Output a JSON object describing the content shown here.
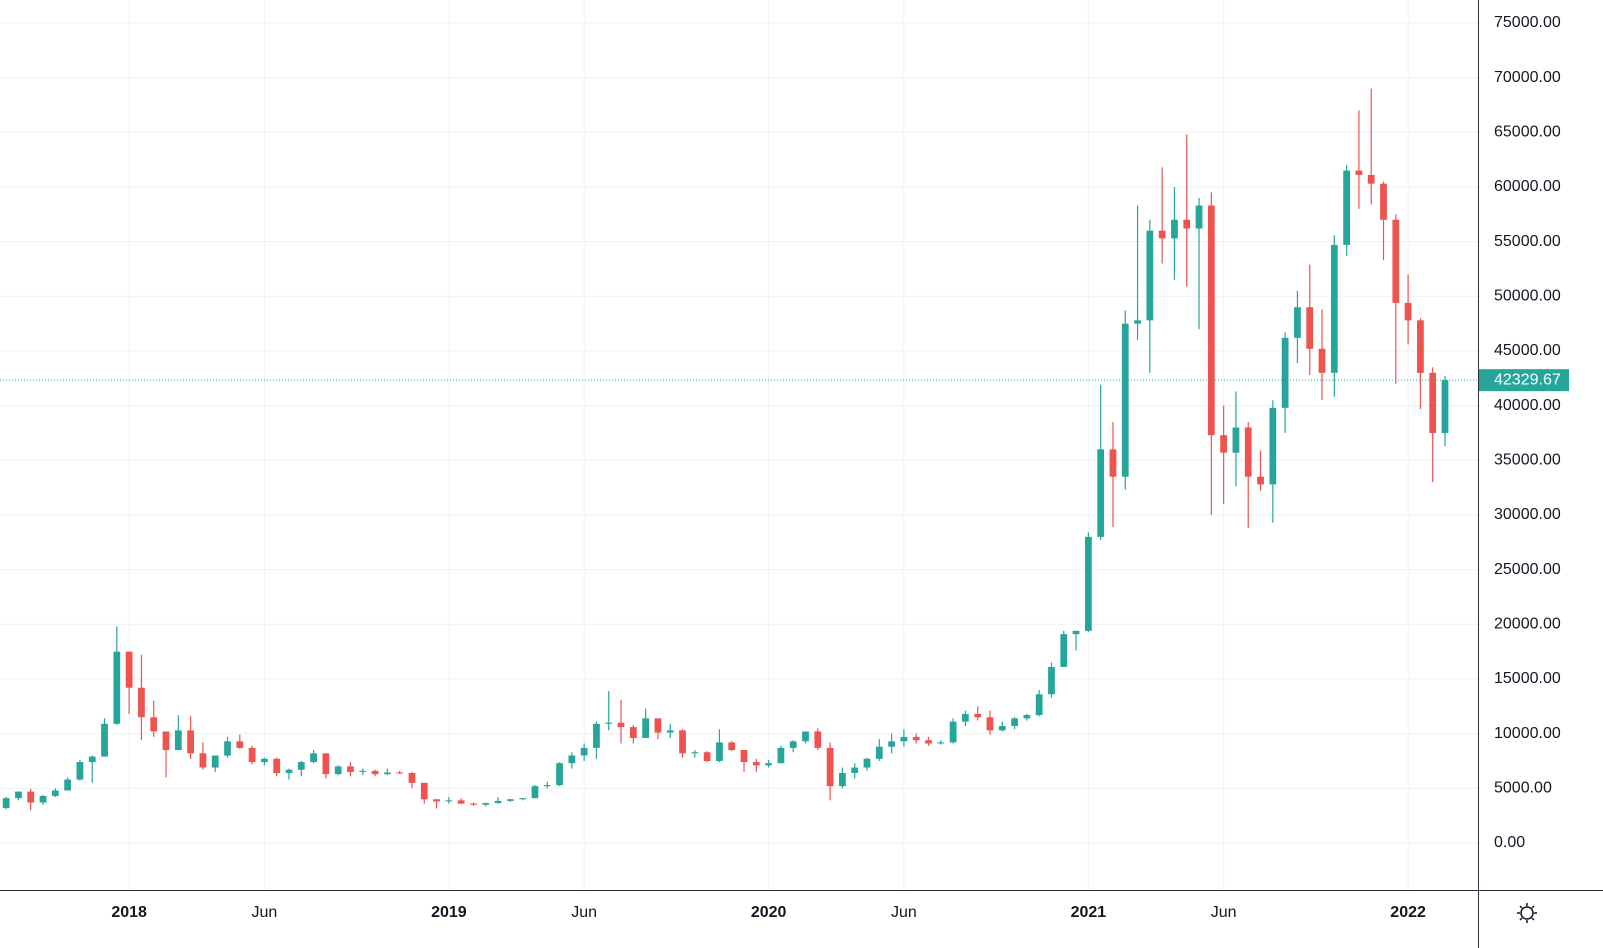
{
  "chart_data": {
    "type": "candlestick",
    "categories": [
      null,
      null,
      null,
      null,
      null,
      null,
      null,
      null,
      null,
      null,
      "2018",
      null,
      null,
      null,
      null,
      null,
      null,
      null,
      null,
      null,
      null,
      "Jun",
      null,
      null,
      null,
      null,
      null,
      null,
      null,
      null,
      null,
      null,
      null,
      null,
      null,
      null,
      "2019",
      null,
      null,
      null,
      null,
      null,
      null,
      null,
      null,
      null,
      null,
      "Jun",
      null,
      null,
      null,
      null,
      null,
      null,
      null,
      null,
      null,
      null,
      null,
      null,
      null,
      null,
      "2020",
      null,
      null,
      null,
      null,
      null,
      null,
      null,
      null,
      null,
      null,
      "Jun",
      null,
      null,
      null,
      null,
      null,
      null,
      null,
      null,
      null,
      null,
      null,
      null,
      null,
      null,
      "2021",
      null,
      null,
      null,
      null,
      null,
      null,
      null,
      null,
      null,
      null,
      "Jun",
      null,
      null,
      null,
      null,
      null,
      null,
      null,
      null,
      null,
      null,
      null,
      null,
      null,
      null,
      "2022",
      null,
      null,
      null
    ],
    "open": [
      3200,
      4100,
      4700,
      3700,
      4300,
      4800,
      5800,
      7400,
      7900,
      10900,
      17500,
      14200,
      11500,
      10200,
      8500,
      10300,
      8200,
      6900,
      8000,
      9300,
      8700,
      7400,
      7700,
      6400,
      6700,
      7400,
      8200,
      6300,
      7000,
      6500,
      6600,
      6300,
      6450,
      6400,
      5500,
      4000,
      3800,
      3900,
      3600,
      3500,
      3650,
      3850,
      4000,
      4100,
      5200,
      5300,
      7300,
      8000,
      8700,
      10900,
      11000,
      10600,
      9600,
      11400,
      10100,
      10300,
      8200,
      8300,
      7500,
      9200,
      8500,
      7400,
      7100,
      7300,
      8700,
      9300,
      10200,
      8700,
      5200,
      6400,
      6900,
      7700,
      8800,
      9300,
      9700,
      9400,
      9100,
      9200,
      11100,
      11800,
      11500,
      10300,
      10700,
      11400,
      11700,
      13600,
      16100,
      19100,
      19400,
      28000,
      36000,
      33500,
      47500,
      47800,
      56000,
      55300,
      57000,
      56200,
      58300,
      37300,
      35700,
      38000,
      33500,
      32800,
      39800,
      46200,
      49000,
      45200,
      43000,
      54700,
      61500,
      61100,
      60300,
      57000,
      49400,
      47800,
      43000,
      37500
    ],
    "high": [
      4200,
      4700,
      4950,
      4400,
      5000,
      6000,
      7600,
      8000,
      11400,
      19800,
      17500,
      17200,
      13000,
      10200,
      11700,
      11600,
      9200,
      8000,
      9700,
      9900,
      8900,
      7800,
      7800,
      6800,
      7500,
      8500,
      8200,
      7100,
      7400,
      6800,
      6700,
      6800,
      6600,
      6500,
      5500,
      4000,
      4200,
      4100,
      3700,
      3700,
      4200,
      4050,
      4100,
      5300,
      5600,
      7400,
      8300,
      9100,
      11100,
      13900,
      13100,
      10800,
      12300,
      11400,
      10900,
      10400,
      8500,
      8400,
      10400,
      9300,
      8500,
      7700,
      7600,
      8900,
      9400,
      10200,
      10500,
      9200,
      6900,
      7300,
      7800,
      9500,
      10000,
      10400,
      10000,
      9700,
      9400,
      11400,
      12100,
      12500,
      12100,
      11100,
      11500,
      11800,
      14000,
      16500,
      19400,
      19400,
      28400,
      41900,
      38500,
      48700,
      58300,
      57000,
      61800,
      60000,
      64800,
      59000,
      59500,
      40000,
      41300,
      38500,
      35900,
      40500,
      46700,
      50500,
      52900,
      48800,
      55600,
      62000,
      67000,
      69000,
      60500,
      57500,
      52000,
      48000,
      43500,
      42700
    ],
    "low": [
      3100,
      3900,
      3000,
      3500,
      4200,
      4800,
      5700,
      5500,
      7900,
      10800,
      11800,
      9400,
      9700,
      6000,
      8500,
      7700,
      6700,
      6500,
      7800,
      8600,
      7200,
      7100,
      6100,
      5800,
      6100,
      7300,
      5900,
      6200,
      6100,
      6200,
      6100,
      6200,
      6300,
      5000,
      3600,
      3150,
      3600,
      3550,
      3400,
      3350,
      3600,
      3750,
      3900,
      4100,
      5000,
      5200,
      6800,
      7500,
      7700,
      10300,
      9100,
      9100,
      9600,
      9500,
      9600,
      7800,
      7800,
      7400,
      7400,
      8400,
      6500,
      6500,
      6900,
      7300,
      8300,
      9100,
      8500,
      3900,
      5000,
      5900,
      6600,
      7500,
      8200,
      8800,
      9100,
      8900,
      9000,
      9100,
      10700,
      11200,
      9900,
      10200,
      10400,
      11200,
      11600,
      13300,
      16100,
      17600,
      19300,
      27700,
      28900,
      32300,
      46000,
      43000,
      53000,
      51500,
      50900,
      47000,
      30000,
      31000,
      32600,
      28800,
      32200,
      29300,
      37500,
      43900,
      42800,
      40500,
      40800,
      53700,
      58000,
      58400,
      53300,
      42000,
      45600,
      39700,
      33000,
      36300
    ],
    "close": [
      4100,
      4700,
      3700,
      4300,
      4800,
      5800,
      7400,
      7900,
      10900,
      17500,
      14200,
      11500,
      10200,
      8500,
      10300,
      8200,
      6900,
      8000,
      9300,
      8700,
      7400,
      7700,
      6400,
      6700,
      7400,
      8200,
      6300,
      7000,
      6500,
      6600,
      6300,
      6450,
      6400,
      5500,
      4000,
      3800,
      3900,
      3600,
      3500,
      3650,
      3850,
      4000,
      4100,
      5200,
      5300,
      7300,
      8000,
      8700,
      10900,
      11000,
      10600,
      9600,
      11400,
      10100,
      10300,
      8200,
      8300,
      7500,
      9200,
      8500,
      7400,
      7100,
      7300,
      8700,
      9300,
      10200,
      8700,
      5200,
      6400,
      6900,
      7700,
      8800,
      9300,
      9700,
      9400,
      9100,
      9200,
      11100,
      11800,
      11500,
      10300,
      10700,
      11400,
      11700,
      13600,
      16100,
      19100,
      19400,
      28000,
      36000,
      33500,
      47500,
      47800,
      56000,
      55300,
      57000,
      56200,
      58300,
      37300,
      35700,
      38000,
      33500,
      32800,
      39800,
      46200,
      49000,
      45200,
      43000,
      54700,
      61500,
      61100,
      60300,
      57000,
      49400,
      47800,
      43000,
      37500,
      42329.67
    ],
    "colors": {
      "up": "#26a69a",
      "down": "#ef5350"
    },
    "ylim": [
      -4300,
      77100
    ],
    "yticks": [
      {
        "value": 0,
        "label": "0.00"
      },
      {
        "value": 5000,
        "label": "5000.00"
      },
      {
        "value": 10000,
        "label": "10000.00"
      },
      {
        "value": 15000,
        "label": "15000.00"
      },
      {
        "value": 20000,
        "label": "20000.00"
      },
      {
        "value": 25000,
        "label": "25000.00"
      },
      {
        "value": 30000,
        "label": "30000.00"
      },
      {
        "value": 35000,
        "label": "35000.00"
      },
      {
        "value": 40000,
        "label": "40000.00"
      },
      {
        "value": 45000,
        "label": "45000.00"
      },
      {
        "value": 50000,
        "label": "50000.00"
      },
      {
        "value": 55000,
        "label": "55000.00"
      },
      {
        "value": 60000,
        "label": "60000.00"
      },
      {
        "value": 65000,
        "label": "65000.00"
      },
      {
        "value": 70000,
        "label": "70000.00"
      },
      {
        "value": 75000,
        "label": "75000.00"
      }
    ],
    "grid": true
  }
}
